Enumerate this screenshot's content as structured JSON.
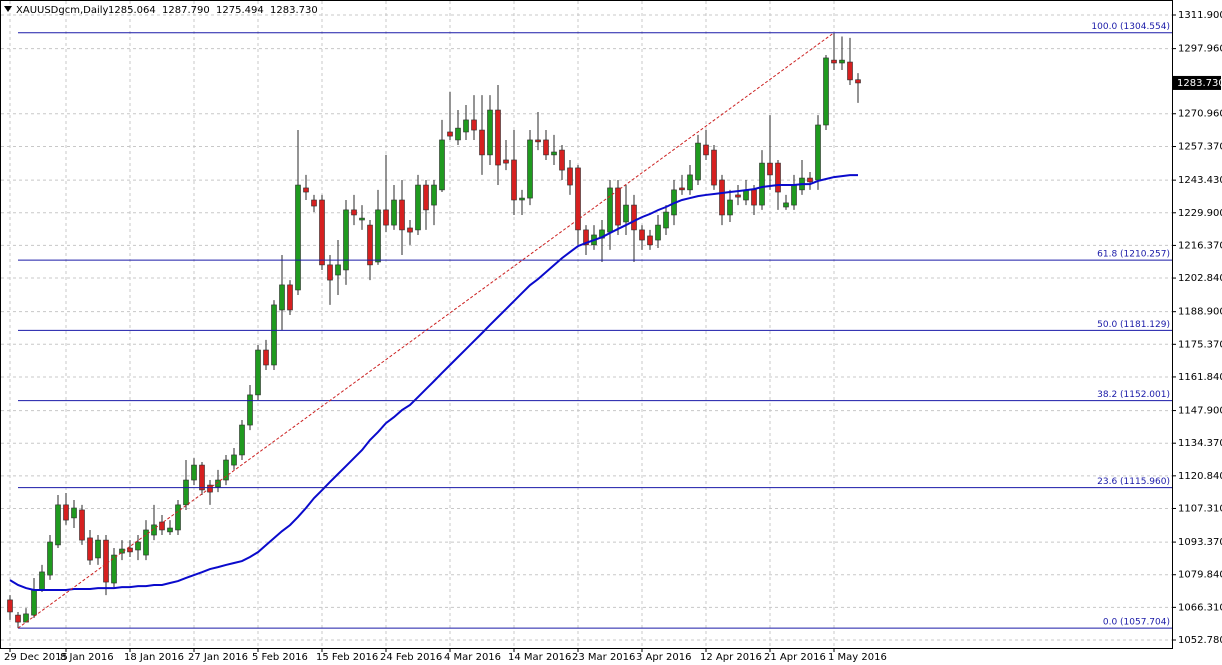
{
  "chart_data": {
    "type": "candlestick",
    "title": "XAUUSDgcm,Daily",
    "ohlc_label": {
      "open": "1285.064",
      "high": "1287.790",
      "low": "1275.494",
      "close": "1283.730"
    },
    "categories": [
      "29 Dec 2015",
      null,
      null,
      null,
      null,
      null,
      null,
      "8 Jan 2016",
      null,
      null,
      null,
      null,
      null,
      null,
      null,
      "18 Jan 2016",
      null,
      null,
      null,
      null,
      null,
      null,
      null,
      "27 Jan 2016",
      null,
      null,
      null,
      null,
      null,
      null,
      null,
      "5 Feb 2016",
      null,
      null,
      null,
      null,
      null,
      null,
      null,
      "15 Feb 2016",
      null,
      null,
      null,
      null,
      null,
      null,
      null,
      "24 Feb 2016",
      null,
      null,
      null,
      null,
      null,
      null,
      null,
      "4 Mar 2016",
      null,
      null,
      null,
      null,
      null,
      null,
      null,
      "14 Mar 2016",
      null,
      null,
      null,
      null,
      null,
      null,
      null,
      "23 Mar 2016",
      null,
      null,
      null,
      null,
      null,
      null,
      null,
      "3 Apr 2016",
      null,
      null,
      null,
      null,
      null,
      null,
      null,
      "12 Apr 2016",
      null,
      null,
      null,
      null,
      null,
      null,
      null,
      "21 Apr 2016",
      null,
      null,
      null,
      null,
      null,
      null,
      null,
      "1 May 2016",
      null,
      null,
      null
    ],
    "open": [
      1069.4,
      1063.1,
      1060.2,
      1063.1,
      1073.5,
      1079.7,
      1092.2,
      1108.8,
      1103.4,
      1106.7,
      1095.1,
      1086.8,
      1094.2,
      1076.4,
      1088.8,
      1090.9,
      1090.1,
      1088.0,
      1096.3,
      1101.7,
      1097.6,
      1098.4,
      1108.8,
      1119.1,
      1125.3,
      1117.0,
      1116.2,
      1119.1,
      1125.3,
      1129.5,
      1141.9,
      1154.4,
      1173.0,
      1166.8,
      1189.6,
      1200.0,
      1197.9,
      1240.2,
      1235.2,
      1235.2,
      1208.3,
      1204.1,
      1206.2,
      1231.1,
      1226.9,
      1224.8,
      1209.5,
      1231.1,
      1224.8,
      1235.2,
      1223.6,
      1222.8,
      1241.4,
      1233.1,
      1239.4,
      1263.4,
      1260.1,
      1263.4,
      1268.4,
      1264.2,
      1253.9,
      1272.5,
      1251.8,
      1251.8,
      1235.2,
      1236.0,
      1260.1,
      1260.1,
      1253.9,
      1255.9,
      1248.5,
      1248.5,
      1222.8,
      1216.6,
      1219.4,
      1221.9,
      1240.2,
      1226.1,
      1233.1,
      1222.8,
      1220.3,
      1218.6,
      1223.6,
      1229.0,
      1240.2,
      1239.4,
      1243.5,
      1258.0,
      1255.9,
      1243.5,
      1229.0,
      1237.3,
      1235.2,
      1239.4,
      1233.1,
      1250.5,
      1250.5,
      1232.3,
      1233.1,
      1239.4,
      1244.3,
      1243.5,
      1266.3,
      1293.2,
      1292.0,
      1292.4,
      1285.064
    ],
    "high": [
      1071.4,
      1064.4,
      1066.0,
      1078.5,
      1083.9,
      1096.3,
      1112.9,
      1113.7,
      1110.8,
      1108.8,
      1098.4,
      1096.3,
      1096.3,
      1090.9,
      1094.2,
      1094.2,
      1096.3,
      1102.5,
      1108.8,
      1104.6,
      1102.5,
      1110.8,
      1127.4,
      1128.2,
      1126.6,
      1119.1,
      1123.3,
      1129.5,
      1132.4,
      1144.0,
      1158.5,
      1175.1,
      1177.2,
      1193.7,
      1212.4,
      1202.0,
      1264.2,
      1245.6,
      1237.3,
      1237.3,
      1212.4,
      1218.6,
      1235.2,
      1237.3,
      1233.1,
      1226.9,
      1239.4,
      1253.9,
      1241.4,
      1243.5,
      1226.9,
      1245.6,
      1243.5,
      1243.5,
      1268.4,
      1280.0,
      1272.5,
      1274.6,
      1278.7,
      1278.7,
      1278.7,
      1282.9,
      1260.1,
      1264.2,
      1239.4,
      1264.2,
      1271.7,
      1264.2,
      1262.2,
      1258.0,
      1251.8,
      1249.7,
      1224.8,
      1224.8,
      1226.9,
      1243.5,
      1243.5,
      1241.4,
      1237.3,
      1224.8,
      1222.8,
      1229.0,
      1233.1,
      1243.5,
      1245.6,
      1249.7,
      1262.2,
      1264.2,
      1258.0,
      1245.6,
      1239.4,
      1241.4,
      1243.5,
      1241.4,
      1255.9,
      1270.4,
      1251.8,
      1237.3,
      1245.6,
      1251.8,
      1246.8,
      1270.4,
      1295.3,
      1304.5,
      1303.0,
      1302.4,
      1287.79
    ],
    "low": [
      1061.1,
      1057.7,
      1060.2,
      1061.9,
      1072.7,
      1077.7,
      1090.9,
      1100.5,
      1099.2,
      1092.2,
      1083.9,
      1083.9,
      1071.4,
      1074.7,
      1085.9,
      1087.2,
      1085.9,
      1085.9,
      1094.2,
      1096.3,
      1096.3,
      1096.3,
      1106.7,
      1117.0,
      1112.9,
      1108.8,
      1114.1,
      1117.0,
      1123.3,
      1127.4,
      1139.8,
      1152.3,
      1164.7,
      1164.7,
      1181.3,
      1187.5,
      1195.8,
      1235.2,
      1230.2,
      1206.2,
      1191.7,
      1195.8,
      1200.0,
      1224.8,
      1222.8,
      1202.0,
      1208.3,
      1221.9,
      1222.8,
      1212.4,
      1216.6,
      1220.7,
      1222.8,
      1224.8,
      1238.5,
      1260.1,
      1258.0,
      1260.1,
      1260.1,
      1245.6,
      1249.7,
      1241.4,
      1247.6,
      1229.0,
      1229.0,
      1233.1,
      1255.9,
      1251.8,
      1249.7,
      1243.5,
      1237.3,
      1216.6,
      1212.4,
      1214.5,
      1209.5,
      1214.5,
      1220.7,
      1220.7,
      1209.5,
      1214.5,
      1214.5,
      1215.3,
      1220.7,
      1224.8,
      1237.3,
      1237.3,
      1241.4,
      1251.8,
      1239.4,
      1224.8,
      1226.1,
      1233.1,
      1233.1,
      1229.0,
      1231.1,
      1239.4,
      1231.1,
      1231.1,
      1231.1,
      1237.3,
      1239.4,
      1239.4,
      1264.2,
      1289.1,
      1289.1,
      1282.9,
      1275.494
    ],
    "close": [
      1064.4,
      1060.2,
      1063.6,
      1073.5,
      1081.0,
      1093.4,
      1108.8,
      1102.5,
      1107.5,
      1094.2,
      1085.9,
      1094.2,
      1076.8,
      1088.0,
      1090.5,
      1089.3,
      1093.4,
      1098.4,
      1100.5,
      1098.4,
      1099.2,
      1108.8,
      1119.1,
      1125.3,
      1115.0,
      1114.1,
      1119.1,
      1127.4,
      1129.5,
      1141.9,
      1154.4,
      1173.0,
      1166.8,
      1191.7,
      1200.0,
      1189.6,
      1241.4,
      1238.5,
      1232.7,
      1208.3,
      1202.0,
      1208.3,
      1231.1,
      1229.0,
      1227.7,
      1208.3,
      1231.1,
      1224.8,
      1235.2,
      1222.8,
      1221.9,
      1241.4,
      1231.1,
      1241.4,
      1260.1,
      1261.7,
      1265.0,
      1268.4,
      1264.2,
      1253.9,
      1272.5,
      1249.7,
      1250.5,
      1235.2,
      1236.0,
      1260.1,
      1259.3,
      1253.9,
      1255.1,
      1247.6,
      1241.4,
      1222.8,
      1216.6,
      1220.7,
      1222.8,
      1240.2,
      1224.8,
      1233.1,
      1222.8,
      1218.6,
      1216.6,
      1224.8,
      1230.2,
      1239.4,
      1239.4,
      1245.6,
      1258.8,
      1253.9,
      1241.4,
      1229.0,
      1235.2,
      1236.4,
      1239.4,
      1233.1,
      1250.5,
      1245.6,
      1238.5,
      1234.0,
      1241.4,
      1244.3,
      1242.7,
      1266.3,
      1294.1,
      1292.0,
      1293.2,
      1285.0,
      1283.73
    ],
    "moving_average": {
      "color": "#0a0acc",
      "values": [
        1077.6,
        1075.6,
        1074.3,
        1073.5,
        1073.5,
        1073.5,
        1073.5,
        1073.5,
        1073.9,
        1073.9,
        1073.9,
        1074.3,
        1074.3,
        1074.3,
        1074.7,
        1074.7,
        1075.1,
        1075.1,
        1075.6,
        1075.6,
        1076.4,
        1077.2,
        1078.5,
        1079.7,
        1080.9,
        1082.2,
        1083.0,
        1083.9,
        1084.7,
        1085.5,
        1087.2,
        1089.2,
        1092.1,
        1095.0,
        1097.9,
        1100.4,
        1103.8,
        1107.5,
        1111.6,
        1114.9,
        1118.3,
        1121.6,
        1124.9,
        1128.2,
        1131.5,
        1135.7,
        1139.0,
        1142.7,
        1145.2,
        1148.1,
        1150.2,
        1153.5,
        1156.8,
        1160.1,
        1163.5,
        1166.8,
        1170.1,
        1173.4,
        1176.7,
        1180.0,
        1183.4,
        1186.7,
        1190.0,
        1193.3,
        1196.6,
        1199.9,
        1202.4,
        1205.3,
        1208.2,
        1211.1,
        1213.6,
        1216.1,
        1217.4,
        1218.6,
        1219.8,
        1221.5,
        1223.2,
        1224.8,
        1226.5,
        1228.1,
        1229.4,
        1231.0,
        1232.3,
        1233.9,
        1235.2,
        1236.0,
        1236.8,
        1237.3,
        1237.7,
        1238.1,
        1238.5,
        1238.9,
        1239.3,
        1239.7,
        1240.6,
        1241.0,
        1241.4,
        1241.4,
        1241.4,
        1241.8,
        1241.8,
        1243.1,
        1243.9,
        1244.7,
        1245.1,
        1245.5,
        1245.5
      ]
    },
    "fib_levels": [
      {
        "label": "100.0 (1304.554)",
        "value": 1304.554
      },
      {
        "label": "61.8 (1210.257)",
        "value": 1210.257
      },
      {
        "label": "50.0 (1181.129)",
        "value": 1181.129
      },
      {
        "label": "38.2 (1152.001)",
        "value": 1152.001
      },
      {
        "label": "23.6 (1115.960)",
        "value": 1115.96
      },
      {
        "label": "0.0 (1057.704)",
        "value": 1057.704
      }
    ],
    "fib_color": "#1a1aa8",
    "trend_color": "#cc2222",
    "up_color": "#1f9a1f",
    "down_color": "#d62020",
    "grid": true,
    "ylim": [
      1049.46,
      1318.12
    ],
    "yticks": [
      {
        "value": 1311.9,
        "label": "1311.900"
      },
      {
        "value": 1297.96,
        "label": "1297.960"
      },
      {
        "value": 1270.96,
        "label": "1270.960"
      },
      {
        "value": 1257.37,
        "label": "1257.370"
      },
      {
        "value": 1243.43,
        "label": "1243.430"
      },
      {
        "value": 1229.9,
        "label": "1229.900"
      },
      {
        "value": 1216.37,
        "label": "1216.370"
      },
      {
        "value": 1202.84,
        "label": "1202.840"
      },
      {
        "value": 1188.9,
        "label": "1188.900"
      },
      {
        "value": 1175.37,
        "label": "1175.370"
      },
      {
        "value": 1161.84,
        "label": "1161.840"
      },
      {
        "value": 1147.9,
        "label": "1147.900"
      },
      {
        "value": 1134.37,
        "label": "1134.370"
      },
      {
        "value": 1120.84,
        "label": "1120.840"
      },
      {
        "value": 1107.31,
        "label": "1107.310"
      },
      {
        "value": 1093.37,
        "label": "1093.370"
      },
      {
        "value": 1079.84,
        "label": "1079.840"
      },
      {
        "value": 1066.31,
        "label": "1066.310"
      },
      {
        "value": 1052.78,
        "label": "1052.780"
      }
    ]
  }
}
